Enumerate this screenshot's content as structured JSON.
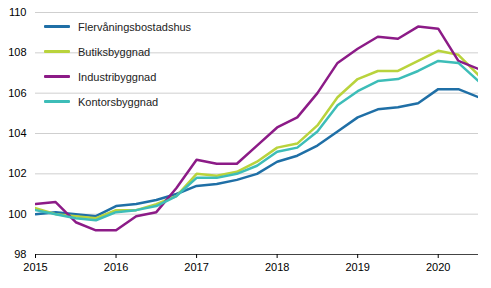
{
  "chart_data": {
    "type": "line",
    "x": [
      2015,
      2015.25,
      2015.5,
      2015.75,
      2016,
      2016.25,
      2016.5,
      2016.75,
      2017,
      2017.25,
      2017.5,
      2017.75,
      2018,
      2018.25,
      2018.5,
      2018.75,
      2019,
      2019.25,
      2019.5,
      2019.75,
      2020,
      2020.25,
      2020.5
    ],
    "series": [
      {
        "name": "Flervåningsbostadshus",
        "color": "#1f6fa6",
        "values": [
          100.0,
          100.1,
          100.0,
          99.9,
          100.4,
          100.5,
          100.7,
          101.0,
          101.4,
          101.5,
          101.7,
          102.0,
          102.6,
          102.9,
          103.4,
          104.1,
          104.8,
          105.2,
          105.3,
          105.5,
          106.2,
          106.2,
          105.8
        ]
      },
      {
        "name": "Butiksbyggnad",
        "color": "#b9d33c",
        "values": [
          100.3,
          100.0,
          99.9,
          99.8,
          100.2,
          100.2,
          100.5,
          100.9,
          102.0,
          101.9,
          102.1,
          102.6,
          103.3,
          103.5,
          104.4,
          105.8,
          106.7,
          107.1,
          107.1,
          107.6,
          108.1,
          107.9,
          106.9
        ]
      },
      {
        "name": "Industribyggnad",
        "color": "#8c1b87",
        "values": [
          100.5,
          100.6,
          99.6,
          99.2,
          99.2,
          99.9,
          100.1,
          101.3,
          102.7,
          102.5,
          102.5,
          103.4,
          104.3,
          104.8,
          106.0,
          107.5,
          108.2,
          108.8,
          108.7,
          109.3,
          109.2,
          107.6,
          107.2
        ]
      },
      {
        "name": "Kontorsbyggnad",
        "color": "#3dbdb8",
        "values": [
          100.2,
          100.0,
          99.8,
          99.7,
          100.1,
          100.2,
          100.4,
          100.9,
          101.8,
          101.8,
          102.0,
          102.4,
          103.1,
          103.3,
          104.1,
          105.4,
          106.1,
          106.6,
          106.7,
          107.1,
          107.6,
          107.5,
          106.6
        ]
      }
    ],
    "xlim": [
      2015,
      2020.5
    ],
    "xticks": [
      2015,
      2016,
      2017,
      2018,
      2019,
      2020
    ],
    "ylim": [
      98,
      110
    ],
    "yticks": [
      98,
      100,
      102,
      104,
      106,
      108,
      110
    ],
    "grid": true,
    "legend": "top-left"
  }
}
